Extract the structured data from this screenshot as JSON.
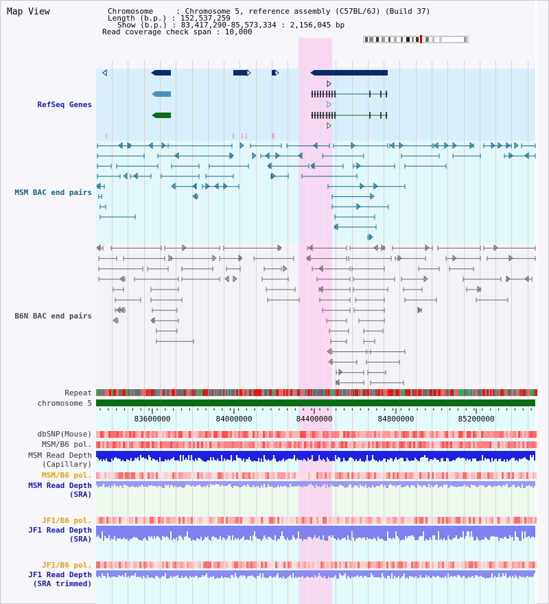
{
  "header": {
    "title": "Map View",
    "info_lines": [
      "Chromosome     : Chromosome 5, reference assembly (C57BL/6J) (Build 37)",
      "Length (b.p.) : 152,537,259",
      "Show (b.p.) : 83,417,290-85,573,334 : 2,156,045 bp",
      "Read coverage check span : 10,000"
    ]
  },
  "tracks": {
    "refseq": "RefSeq Genes",
    "msm_bac": "MSM BAC end pairs",
    "b6n_bac": "B6N BAC end pairs",
    "repeat": "Repeat",
    "chromosome": "chromosome 5",
    "dbsnp": "dbSNP(Mouse)",
    "msm_b6_pol_1": "MSM/B6 pol.",
    "msm_read_depth_cap_1": "MSM Read Depth",
    "msm_read_depth_cap_2": "(Capillary)",
    "msm_b6_pol_2": "MSM/B6 pol.",
    "msm_read_depth_sra_1": "MSM Read Depth",
    "msm_read_depth_sra_2": "(SRA)",
    "jf1_b6_pol_1": "JF1/B6 pol.",
    "jf1_read_depth_sra_1": "JF1 Read Depth",
    "jf1_read_depth_sra_2": "(SRA)",
    "jf1_b6_pol_2": "JF1/B6 pol.",
    "jf1_read_depth_trim_1": "JF1 Read Depth",
    "jf1_read_depth_trim_2": "(SRA trimmed)"
  },
  "axis": {
    "ticks": [
      "83600000",
      "84000000",
      "84400000",
      "84800000",
      "85200000"
    ]
  },
  "colors": {
    "highlight": "#f9d4f0",
    "refseq_bg": "#d9effb",
    "msm_bg": "#e3f8fb",
    "gene_navy": "#0b2a66",
    "gene_steel": "#4a8fc0",
    "gene_green": "#0b6b1c",
    "bac_teal": "#1a6a8a",
    "bac_gray": "#6a6a6a",
    "chrom_green": "#0a6e14",
    "depth_blue": "#2020e0",
    "depth_lav": "#8080f0"
  }
}
